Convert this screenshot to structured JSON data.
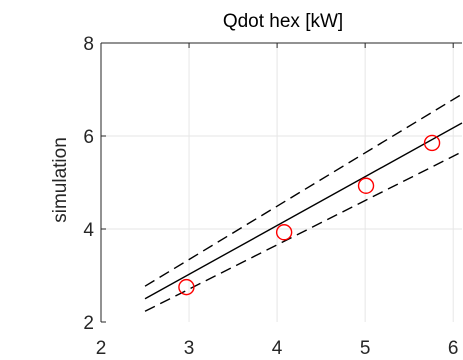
{
  "chart_data": {
    "type": "scatter",
    "title": "Qdot hex [kW]",
    "xlabel": "",
    "ylabel": "simulation",
    "xlim": [
      2,
      6.1
    ],
    "ylim": [
      2,
      8
    ],
    "xticks": [
      2,
      3,
      4,
      5,
      6
    ],
    "yticks": [
      2,
      4,
      6,
      8
    ],
    "grid": true,
    "points": [
      {
        "x": 2.97,
        "y": 2.75
      },
      {
        "x": 4.08,
        "y": 3.93
      },
      {
        "x": 5.01,
        "y": 4.93
      },
      {
        "x": 5.76,
        "y": 5.85
      }
    ],
    "lines": [
      {
        "style": "solid",
        "x": [
          2.5,
          6.1
        ],
        "y": [
          2.5,
          6.28
        ]
      },
      {
        "style": "dashed",
        "x": [
          2.5,
          6.1
        ],
        "y": [
          2.77,
          6.9
        ]
      },
      {
        "style": "dashed",
        "x": [
          2.5,
          6.1
        ],
        "y": [
          2.23,
          5.66
        ]
      }
    ],
    "colors": {
      "points": "#ff0000",
      "lines": "#000000",
      "grid": "#e6e6e6",
      "axis": "#262626"
    }
  }
}
